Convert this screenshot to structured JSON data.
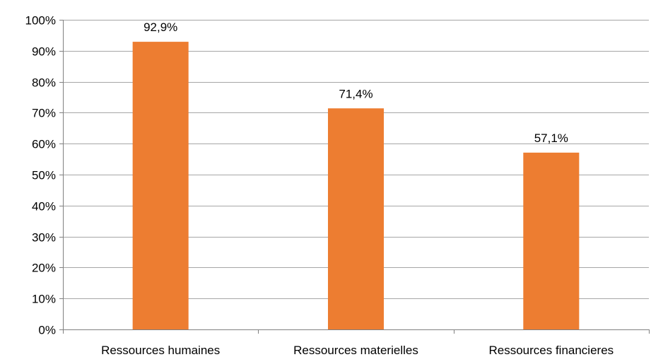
{
  "chart_data": {
    "type": "bar",
    "categories": [
      "Ressources humaines",
      "Ressources materielles",
      "Ressources financieres"
    ],
    "values": [
      92.9,
      71.4,
      57.1
    ],
    "data_labels": [
      "92,9%",
      "71,4%",
      "57,1%"
    ],
    "title": "",
    "xlabel": "",
    "ylabel": "",
    "ylim": [
      0,
      100
    ],
    "y_ticks": [
      0,
      10,
      20,
      30,
      40,
      50,
      60,
      70,
      80,
      90,
      100
    ],
    "y_tick_labels": [
      "0%",
      "10%",
      "20%",
      "30%",
      "40%",
      "50%",
      "60%",
      "70%",
      "80%",
      "90%",
      "100%"
    ],
    "grid": true,
    "legend": "none",
    "bar_color": "#ED7D31",
    "grid_color": "#A6A6A6",
    "axis_color": "#808080"
  }
}
